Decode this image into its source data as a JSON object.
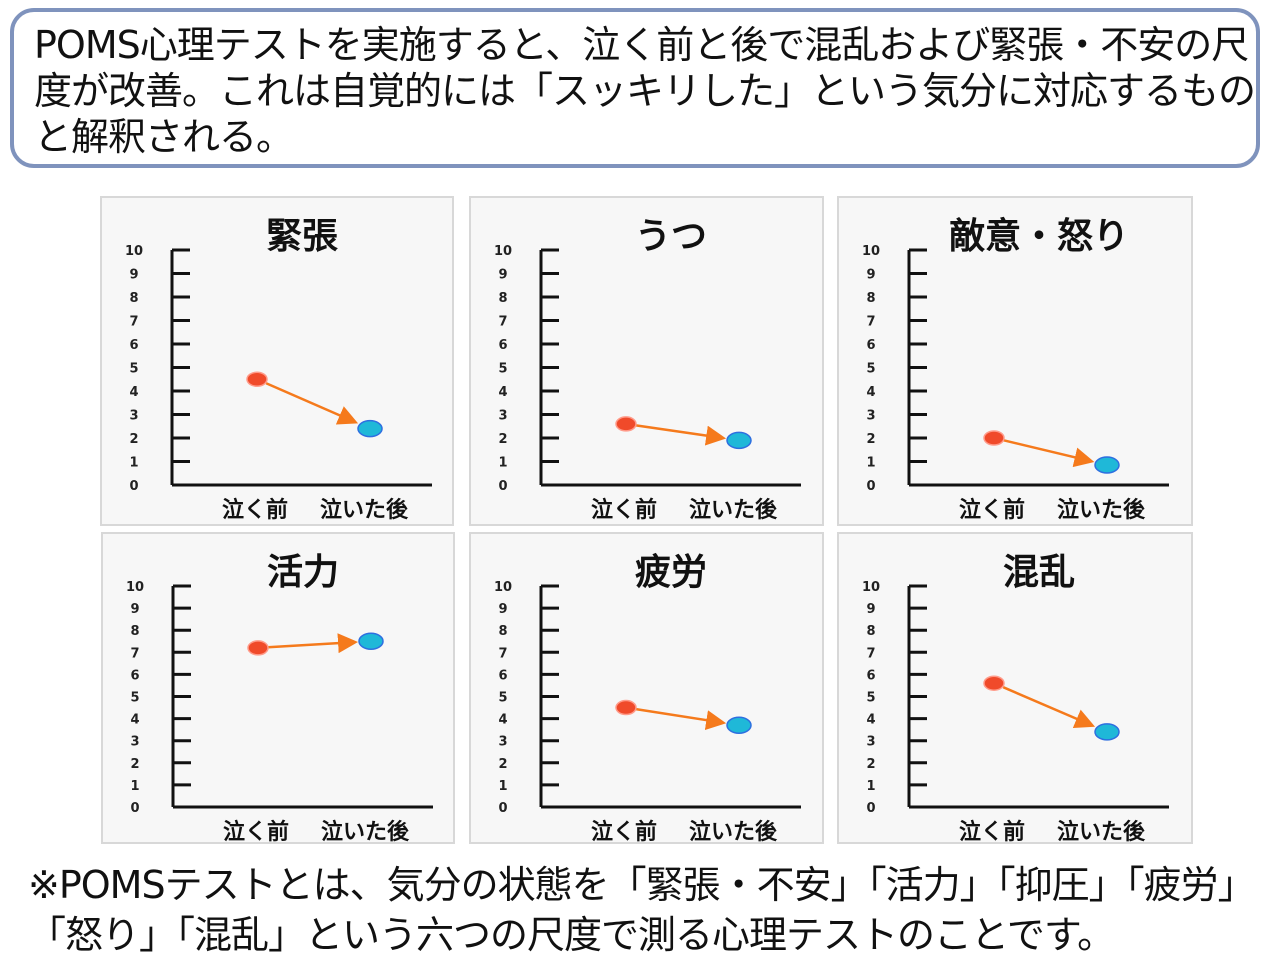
{
  "header": {
    "text": " POMS心理テストを実施すると、泣く前と後で混乱および緊張・不安の尺度が改善。これは自覚的には「スッキリした」という気分に対応するものと解釈される。"
  },
  "footer": {
    "text": "※POMSテストとは、気分の状態を「緊張・不安」「活力」「抑圧」「疲労」「怒り」「混乱」という六つの尺度で測る心理テストのことです。"
  },
  "colors": {
    "before": "#f04a2a",
    "after": "#1fb8d8",
    "arrow": "#f57a1c",
    "border": "#7f93bd"
  },
  "chart_data": [
    {
      "type": "line",
      "title": "緊張",
      "categories": [
        "泣く前",
        "泣いた後"
      ],
      "values": [
        4.5,
        2.4
      ],
      "ylim": [
        0,
        10
      ],
      "yticks": [
        "0",
        "1",
        "2",
        "3",
        "4",
        "5",
        "6",
        "7",
        "8",
        "9",
        "10"
      ]
    },
    {
      "type": "line",
      "title": "うつ",
      "categories": [
        "泣く前",
        "泣いた後"
      ],
      "values": [
        2.6,
        1.9
      ],
      "ylim": [
        0,
        10
      ],
      "yticks": [
        "0",
        "1",
        "2",
        "3",
        "4",
        "5",
        "6",
        "7",
        "8",
        "9",
        "10"
      ]
    },
    {
      "type": "line",
      "title": "敵意・怒り",
      "categories": [
        "泣く前",
        "泣いた後"
      ],
      "values": [
        2.0,
        0.85
      ],
      "ylim": [
        0,
        10
      ],
      "yticks": [
        "0",
        "1",
        "2",
        "3",
        "4",
        "5",
        "6",
        "7",
        "8",
        "9",
        "10"
      ]
    },
    {
      "type": "line",
      "title": "活力",
      "categories": [
        "泣く前",
        "泣いた後"
      ],
      "values": [
        7.2,
        7.5
      ],
      "ylim": [
        0,
        10
      ],
      "yticks": [
        "0",
        "1",
        "2",
        "3",
        "4",
        "5",
        "6",
        "7",
        "8",
        "9",
        "10"
      ]
    },
    {
      "type": "line",
      "title": "疲労",
      "categories": [
        "泣く前",
        "泣いた後"
      ],
      "values": [
        4.5,
        3.7
      ],
      "ylim": [
        0,
        10
      ],
      "yticks": [
        "0",
        "1",
        "2",
        "3",
        "4",
        "5",
        "6",
        "7",
        "8",
        "9",
        "10"
      ]
    },
    {
      "type": "line",
      "title": "混乱",
      "categories": [
        "泣く前",
        "泣いた後"
      ],
      "values": [
        5.6,
        3.4
      ],
      "ylim": [
        0,
        10
      ],
      "yticks": [
        "0",
        "1",
        "2",
        "3",
        "4",
        "5",
        "6",
        "7",
        "8",
        "9",
        "10"
      ]
    }
  ]
}
